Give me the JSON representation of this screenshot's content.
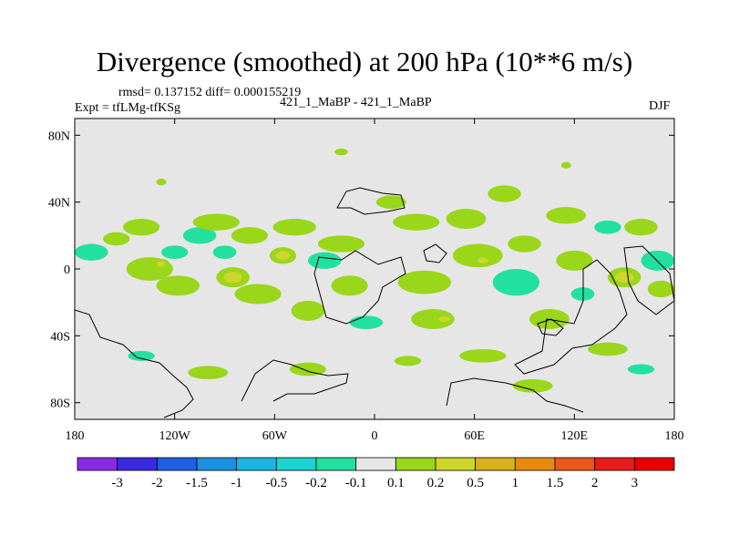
{
  "chart_data": {
    "type": "heatmap",
    "title": "Divergence (smoothed) at 200 hPa (10**6 m/s)",
    "stats": "rmsd= 0.137152 diff= 0.000155219",
    "experiment": "Expt = tfLMg-tfKSg",
    "case": "421_1_MaBP - 421_1_MaBP",
    "season": "DJF",
    "xlabel": "",
    "ylabel": "",
    "xlim": [
      -180,
      180
    ],
    "ylim": [
      -90,
      90
    ],
    "x_ticks": [
      {
        "value": -180,
        "label": "180"
      },
      {
        "value": -120,
        "label": "120W"
      },
      {
        "value": -60,
        "label": "60W"
      },
      {
        "value": 0,
        "label": "0"
      },
      {
        "value": 60,
        "label": "60E"
      },
      {
        "value": 120,
        "label": "120E"
      },
      {
        "value": 180,
        "label": "180"
      }
    ],
    "y_ticks": [
      {
        "value": 80,
        "label": "80N"
      },
      {
        "value": 40,
        "label": "40N"
      },
      {
        "value": 0,
        "label": "0"
      },
      {
        "value": -40,
        "label": "40S"
      },
      {
        "value": -80,
        "label": "80S"
      }
    ],
    "colorbar": {
      "labels": [
        "-3",
        "-2",
        "-1.5",
        "-1",
        "-0.5",
        "-0.2",
        "-0.1",
        "0.1",
        "0.2",
        "0.5",
        "1",
        "1.5",
        "2",
        "3"
      ],
      "colors": [
        "#8a2be2",
        "#3a2ae0",
        "#1f5fe0",
        "#1a90e0",
        "#18b6e0",
        "#19d4d0",
        "#22e0a0",
        "#e6e6e6",
        "#9ad61a",
        "#cdd62a",
        "#d9b21a",
        "#e88a10",
        "#e8581c",
        "#e81c1c",
        "#e80000"
      ]
    },
    "background_color": "#e6e6e6",
    "features": [
      {
        "lon": -155,
        "lat": 18,
        "rx": 8,
        "ry": 4,
        "level": 1
      },
      {
        "lon": -170,
        "lat": 10,
        "rx": 10,
        "ry": 5,
        "level": -1
      },
      {
        "lon": -140,
        "lat": 25,
        "rx": 11,
        "ry": 5,
        "level": 1
      },
      {
        "lon": -135,
        "lat": 0,
        "rx": 14,
        "ry": 7,
        "level": 1
      },
      {
        "lon": -128,
        "lat": 3,
        "rx": 5,
        "ry": 3,
        "level": 2
      },
      {
        "lon": -120,
        "lat": 10,
        "rx": 8,
        "ry": 4,
        "level": -1
      },
      {
        "lon": -118,
        "lat": -10,
        "rx": 13,
        "ry": 6,
        "level": 1
      },
      {
        "lon": -105,
        "lat": 20,
        "rx": 10,
        "ry": 5,
        "level": -1
      },
      {
        "lon": -95,
        "lat": 28,
        "rx": 14,
        "ry": 5,
        "level": 1
      },
      {
        "lon": -90,
        "lat": 10,
        "rx": 7,
        "ry": 4,
        "level": -1
      },
      {
        "lon": -85,
        "lat": -5,
        "rx": 10,
        "ry": 6,
        "level": 2
      },
      {
        "lon": -75,
        "lat": 20,
        "rx": 11,
        "ry": 5,
        "level": 1
      },
      {
        "lon": -70,
        "lat": -15,
        "rx": 14,
        "ry": 6,
        "level": 1
      },
      {
        "lon": -55,
        "lat": 8,
        "rx": 8,
        "ry": 5,
        "level": 2
      },
      {
        "lon": -48,
        "lat": 25,
        "rx": 13,
        "ry": 5,
        "level": 1
      },
      {
        "lon": -40,
        "lat": -25,
        "rx": 10,
        "ry": 6,
        "level": 1
      },
      {
        "lon": -30,
        "lat": 5,
        "rx": 10,
        "ry": 5,
        "level": -1
      },
      {
        "lon": -20,
        "lat": 15,
        "rx": 14,
        "ry": 5,
        "level": 1
      },
      {
        "lon": -15,
        "lat": -10,
        "rx": 11,
        "ry": 6,
        "level": 1
      },
      {
        "lon": -5,
        "lat": -32,
        "rx": 10,
        "ry": 4,
        "level": -1
      },
      {
        "lon": 10,
        "lat": 40,
        "rx": 9,
        "ry": 4,
        "level": 1
      },
      {
        "lon": 25,
        "lat": 28,
        "rx": 14,
        "ry": 5,
        "level": 1
      },
      {
        "lon": 30,
        "lat": -8,
        "rx": 16,
        "ry": 7,
        "level": 1
      },
      {
        "lon": 35,
        "lat": -30,
        "rx": 13,
        "ry": 6,
        "level": 1
      },
      {
        "lon": 42,
        "lat": -30,
        "rx": 6,
        "ry": 3,
        "level": 2
      },
      {
        "lon": 55,
        "lat": 30,
        "rx": 12,
        "ry": 6,
        "level": 1
      },
      {
        "lon": 62,
        "lat": 8,
        "rx": 15,
        "ry": 7,
        "level": 1
      },
      {
        "lon": 65,
        "lat": 5,
        "rx": 6,
        "ry": 3,
        "level": 2
      },
      {
        "lon": 78,
        "lat": 45,
        "rx": 10,
        "ry": 5,
        "level": 1
      },
      {
        "lon": 85,
        "lat": -8,
        "rx": 14,
        "ry": 8,
        "level": -1
      },
      {
        "lon": 90,
        "lat": 15,
        "rx": 10,
        "ry": 5,
        "level": 1
      },
      {
        "lon": 105,
        "lat": -30,
        "rx": 12,
        "ry": 6,
        "level": 1
      },
      {
        "lon": 115,
        "lat": 32,
        "rx": 12,
        "ry": 5,
        "level": 1
      },
      {
        "lon": 120,
        "lat": 5,
        "rx": 11,
        "ry": 6,
        "level": 1
      },
      {
        "lon": 125,
        "lat": -15,
        "rx": 7,
        "ry": 4,
        "level": -1
      },
      {
        "lon": 140,
        "lat": 25,
        "rx": 8,
        "ry": 4,
        "level": -1
      },
      {
        "lon": 150,
        "lat": -5,
        "rx": 10,
        "ry": 6,
        "level": 2
      },
      {
        "lon": 160,
        "lat": 25,
        "rx": 10,
        "ry": 5,
        "level": 1
      },
      {
        "lon": 170,
        "lat": 5,
        "rx": 10,
        "ry": 6,
        "level": -1
      },
      {
        "lon": 172,
        "lat": -12,
        "rx": 8,
        "ry": 5,
        "level": 1
      },
      {
        "lon": -100,
        "lat": -62,
        "rx": 12,
        "ry": 4,
        "level": 1
      },
      {
        "lon": -40,
        "lat": -60,
        "rx": 11,
        "ry": 4,
        "level": 1
      },
      {
        "lon": 20,
        "lat": -55,
        "rx": 8,
        "ry": 3,
        "level": 1
      },
      {
        "lon": 65,
        "lat": -52,
        "rx": 14,
        "ry": 4,
        "level": 1
      },
      {
        "lon": 95,
        "lat": -70,
        "rx": 12,
        "ry": 4,
        "level": 1
      },
      {
        "lon": 140,
        "lat": -48,
        "rx": 12,
        "ry": 4,
        "level": 1
      },
      {
        "lon": 160,
        "lat": -60,
        "rx": 8,
        "ry": 3,
        "level": -1
      },
      {
        "lon": -140,
        "lat": -52,
        "rx": 8,
        "ry": 3,
        "level": -1
      },
      {
        "lon": -20,
        "lat": 70,
        "rx": 4,
        "ry": 2,
        "level": 1
      },
      {
        "lon": 115,
        "lat": 62,
        "rx": 3,
        "ry": 2,
        "level": 1
      },
      {
        "lon": -128,
        "lat": 52,
        "rx": 3,
        "ry": 2,
        "level": 1
      }
    ]
  }
}
